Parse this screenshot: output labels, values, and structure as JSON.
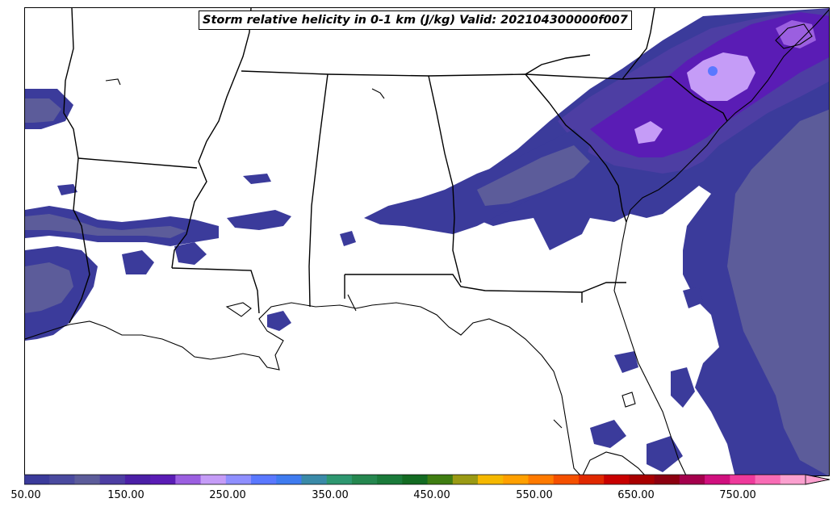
{
  "title": "Storm relative helicity in 0-1 km (J/kg) Valid: 202104300000f007",
  "colorbar": {
    "min": 50,
    "max": 850,
    "step": 25,
    "extend": "max",
    "colors": [
      "#3b3b9b",
      "#4a4a9f",
      "#5c5c9a",
      "#4d3ea3",
      "#4b1fa6",
      "#5a1cb5",
      "#9b5fe0",
      "#c59cf7",
      "#8f8fff",
      "#5a78ff",
      "#3f7bef",
      "#3a8aa8",
      "#2e9770",
      "#25874f",
      "#1a7a3a",
      "#136b22",
      "#3f7d12",
      "#9a9a14",
      "#f5b800",
      "#ffa000",
      "#ff7a00",
      "#f55000",
      "#e02800",
      "#c80000",
      "#a80000",
      "#8c0010",
      "#a4004c",
      "#d0107e",
      "#ee3a9b",
      "#f86cb5",
      "#fba0cf"
    ],
    "tick_labels": [
      "50.00",
      "150.00",
      "250.00",
      "350.00",
      "450.00",
      "550.00",
      "650.00",
      "750.00"
    ]
  },
  "legend_colors": {
    "land_outline": "#000000",
    "background": "#ffffff"
  }
}
